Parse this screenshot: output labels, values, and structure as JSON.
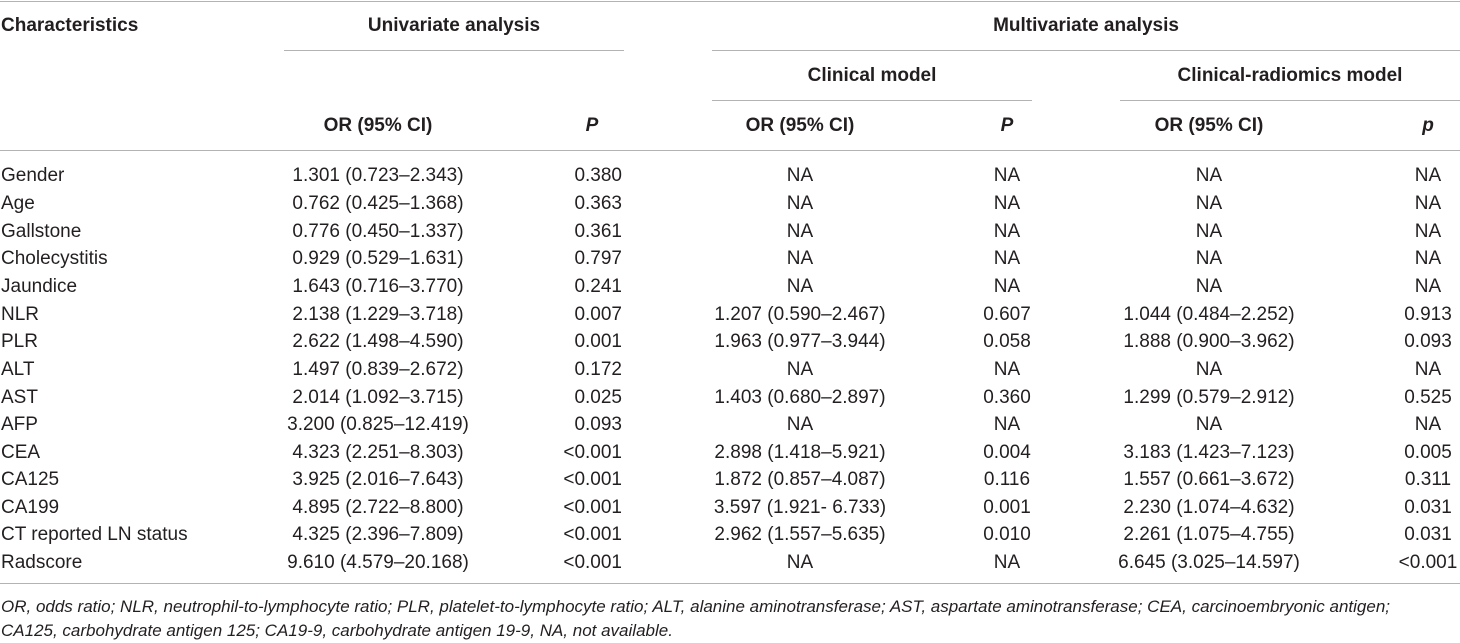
{
  "header": {
    "characteristics": "Characteristics",
    "univariate": "Univariate analysis",
    "multivariate": "Multivariate analysis",
    "clinical_model": "Clinical model",
    "clinical_radiomics_model": "Clinical-radiomics model",
    "uni_or": "OR (95% CI)",
    "uni_p": "P",
    "clin_or": "OR (95% CI)",
    "clin_p": "P",
    "rad_or": "OR (95% CI)",
    "rad_p": "p"
  },
  "rows": [
    {
      "name": "Gender",
      "uni_or": "1.301 (0.723–2.343)",
      "uni_p": "0.380",
      "clin_or": "NA",
      "clin_p": "NA",
      "rad_or": "NA",
      "rad_p": "NA"
    },
    {
      "name": "Age",
      "uni_or": "0.762 (0.425–1.368)",
      "uni_p": "0.363",
      "clin_or": "NA",
      "clin_p": "NA",
      "rad_or": "NA",
      "rad_p": "NA"
    },
    {
      "name": "Gallstone",
      "uni_or": "0.776 (0.450–1.337)",
      "uni_p": "0.361",
      "clin_or": "NA",
      "clin_p": "NA",
      "rad_or": "NA",
      "rad_p": "NA"
    },
    {
      "name": "Cholecystitis",
      "uni_or": "0.929 (0.529–1.631)",
      "uni_p": "0.797",
      "clin_or": "NA",
      "clin_p": "NA",
      "rad_or": "NA",
      "rad_p": "NA"
    },
    {
      "name": "Jaundice",
      "uni_or": "1.643 (0.716–3.770)",
      "uni_p": "0.241",
      "clin_or": "NA",
      "clin_p": "NA",
      "rad_or": "NA",
      "rad_p": "NA"
    },
    {
      "name": "NLR",
      "uni_or": "2.138 (1.229–3.718)",
      "uni_p": "0.007",
      "clin_or": "1.207 (0.590–2.467)",
      "clin_p": "0.607",
      "rad_or": "1.044 (0.484–2.252)",
      "rad_p": "0.913"
    },
    {
      "name": "PLR",
      "uni_or": "2.622 (1.498–4.590)",
      "uni_p": "0.001",
      "clin_or": "1.963 (0.977–3.944)",
      "clin_p": "0.058",
      "rad_or": "1.888 (0.900–3.962)",
      "rad_p": "0.093"
    },
    {
      "name": "ALT",
      "uni_or": "1.497 (0.839–2.672)",
      "uni_p": "0.172",
      "clin_or": "NA",
      "clin_p": "NA",
      "rad_or": "NA",
      "rad_p": "NA"
    },
    {
      "name": "AST",
      "uni_or": "2.014 (1.092–3.715)",
      "uni_p": "0.025",
      "clin_or": "1.403 (0.680–2.897)",
      "clin_p": "0.360",
      "rad_or": "1.299 (0.579–2.912)",
      "rad_p": "0.525"
    },
    {
      "name": "AFP",
      "uni_or": "3.200 (0.825–12.419)",
      "uni_p": "0.093",
      "clin_or": "NA",
      "clin_p": "NA",
      "rad_or": "NA",
      "rad_p": "NA"
    },
    {
      "name": "CEA",
      "uni_or": "4.323 (2.251–8.303)",
      "uni_p": "<0.001",
      "clin_or": "2.898 (1.418–5.921)",
      "clin_p": "0.004",
      "rad_or": "3.183 (1.423–7.123)",
      "rad_p": "0.005"
    },
    {
      "name": "CA125",
      "uni_or": "3.925 (2.016–7.643)",
      "uni_p": "<0.001",
      "clin_or": "1.872 (0.857–4.087)",
      "clin_p": "0.116",
      "rad_or": "1.557 (0.661–3.672)",
      "rad_p": "0.311"
    },
    {
      "name": "CA199",
      "uni_or": "4.895 (2.722–8.800)",
      "uni_p": "<0.001",
      "clin_or": "3.597 (1.921- 6.733)",
      "clin_p": "0.001",
      "rad_or": "2.230 (1.074–4.632)",
      "rad_p": "0.031"
    },
    {
      "name": "CT reported LN status",
      "uni_or": "4.325 (2.396–7.809)",
      "uni_p": "<0.001",
      "clin_or": "2.962 (1.557–5.635)",
      "clin_p": "0.010",
      "rad_or": "2.261 (1.075–4.755)",
      "rad_p": "0.031"
    },
    {
      "name": "Radscore",
      "uni_or": "9.610 (4.579–20.168)",
      "uni_p": "<0.001",
      "clin_or": "NA",
      "clin_p": "NA",
      "rad_or": "6.645 (3.025–14.597)",
      "rad_p": "<0.001"
    }
  ],
  "footnote": {
    "line1": "OR, odds ratio; NLR, neutrophil-to-lymphocyte ratio; PLR, platelet-to-lymphocyte ratio; ALT, alanine aminotransferase; AST, aspartate aminotransferase; CEA, carcinoembryonic antigen;",
    "line2": "CA125, carbohydrate antigen 125; CA19-9, carbohydrate antigen 19-9, NA, not available."
  }
}
